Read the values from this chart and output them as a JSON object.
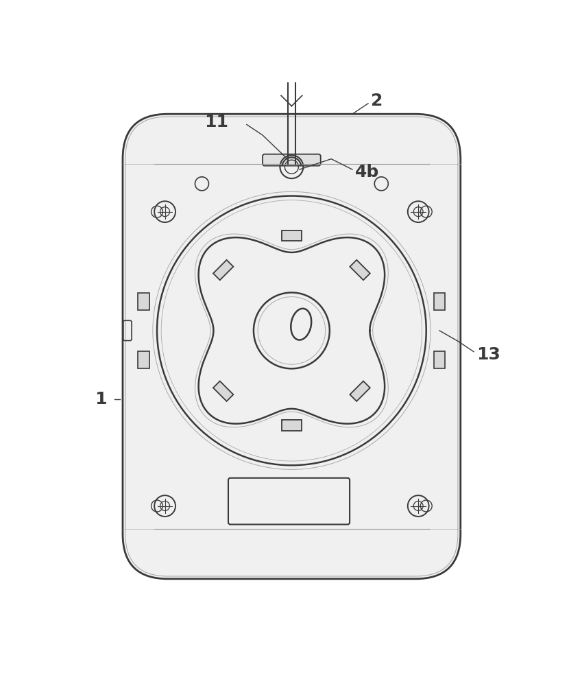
{
  "bg_color": "#ffffff",
  "line_color": "#3a3a3a",
  "light_line_color": "#777777",
  "lighter_line_color": "#aaaaaa",
  "figsize": [
    8.3,
    10.0
  ],
  "dpi": 100
}
